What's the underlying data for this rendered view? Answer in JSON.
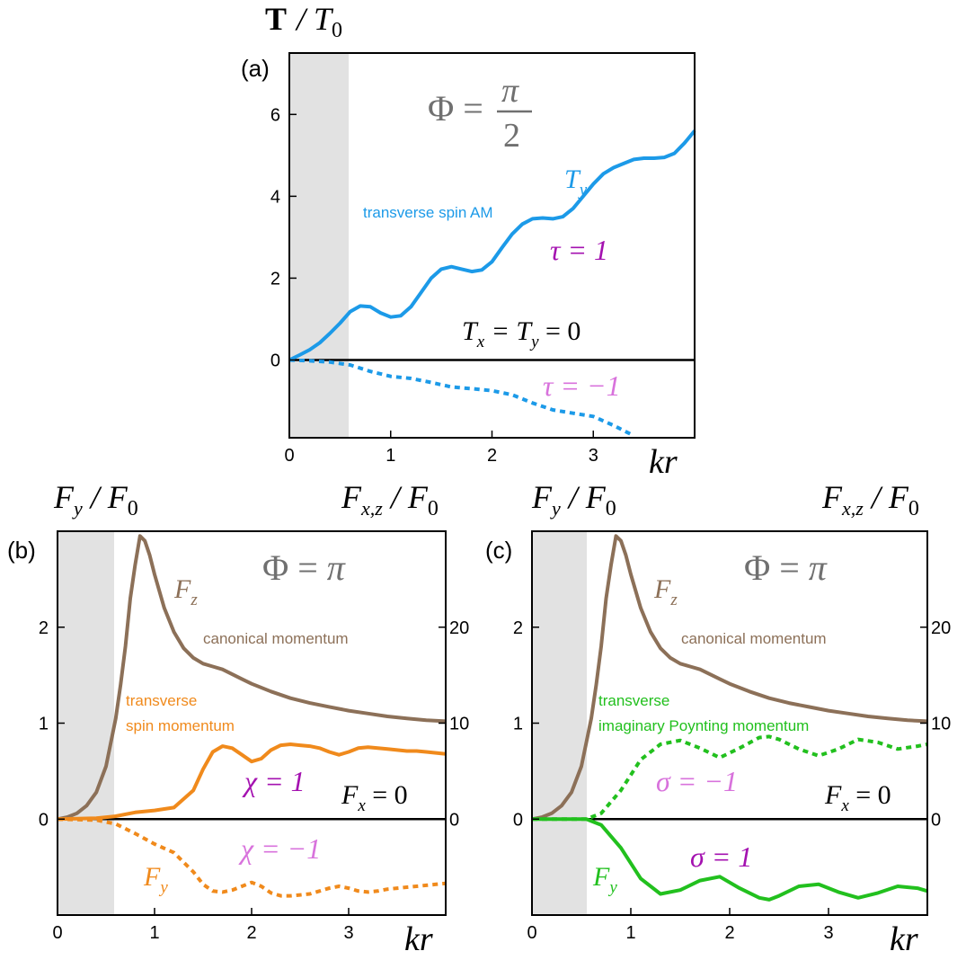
{
  "colors": {
    "blue": "#1c9ae8",
    "brown": "#8c7058",
    "orange": "#f08a1c",
    "green": "#22c01e",
    "purple": "#a412b0",
    "pink": "#d872dc",
    "gray_text": "#707070",
    "shade": "#e2e2e2"
  },
  "chart_data": [
    {
      "panel": "(a)",
      "type": "line",
      "ylabel": "T / T0",
      "xlabel": "kr",
      "xlim": [
        0,
        4
      ],
      "ylim": [
        -1.9,
        7.5
      ],
      "x_ticks": [
        "0",
        "1",
        "2",
        "3"
      ],
      "y_ticks": [
        "0",
        "2",
        "4",
        "6"
      ],
      "shaded_region": [
        0,
        0.6
      ],
      "phi_label": "Φ = π/2",
      "annotations": {
        "series_label": "Ty",
        "description": "transverse spin AM",
        "tau_pos": "τ = 1",
        "tau_neg": "τ = −1",
        "zero_note": "Tx = Ty = 0"
      },
      "series": [
        {
          "style": "solid",
          "color": "blue",
          "x": [
            0,
            0.1,
            0.2,
            0.3,
            0.4,
            0.5,
            0.6,
            0.7,
            0.8,
            0.9,
            1.0,
            1.1,
            1.2,
            1.3,
            1.4,
            1.5,
            1.6,
            1.7,
            1.8,
            1.9,
            2.0,
            2.1,
            2.2,
            2.3,
            2.4,
            2.5,
            2.6,
            2.7,
            2.8,
            2.9,
            3.0,
            3.1,
            3.2,
            3.3,
            3.4,
            3.5,
            3.6,
            3.7,
            3.8,
            3.9,
            4.0
          ],
          "y": [
            0,
            0.12,
            0.25,
            0.42,
            0.65,
            0.9,
            1.18,
            1.32,
            1.3,
            1.15,
            1.05,
            1.08,
            1.3,
            1.65,
            2.0,
            2.22,
            2.28,
            2.22,
            2.16,
            2.2,
            2.4,
            2.75,
            3.08,
            3.32,
            3.45,
            3.47,
            3.45,
            3.5,
            3.7,
            4.0,
            4.3,
            4.55,
            4.7,
            4.8,
            4.9,
            4.93,
            4.93,
            4.95,
            5.05,
            5.3,
            5.6
          ]
        },
        {
          "style": "dotted",
          "color": "blue",
          "x": [
            0,
            0.2,
            0.4,
            0.6,
            0.8,
            1.0,
            1.2,
            1.4,
            1.6,
            1.8,
            2.0,
            2.2,
            2.4,
            2.6,
            2.8,
            3.0,
            3.2,
            3.4
          ],
          "y": [
            0,
            -0.02,
            -0.05,
            -0.12,
            -0.28,
            -0.4,
            -0.45,
            -0.55,
            -0.66,
            -0.7,
            -0.75,
            -0.85,
            -1.05,
            -1.22,
            -1.3,
            -1.38,
            -1.6,
            -1.85
          ]
        }
      ]
    },
    {
      "panel": "(b)",
      "type": "line",
      "ylabel_left": "Fy / F0",
      "ylabel_right": "Fx,z / F0",
      "xlabel": "kr",
      "xlim": [
        0,
        4
      ],
      "ylim_left": [
        -1,
        3
      ],
      "ylim_right": [
        -10,
        30
      ],
      "x_ticks": [
        "0",
        "1",
        "2",
        "3"
      ],
      "y_ticks_left": [
        "0",
        "1",
        "2"
      ],
      "y_ticks_right": [
        "0",
        "10",
        "20"
      ],
      "shaded_region": [
        0,
        0.6
      ],
      "phi_label": "Φ = π",
      "annotations": {
        "fz_label": "Fz",
        "fz_description": "canonical momentum",
        "fy_label": "Fy",
        "fy_description_line1": "transverse",
        "fy_description_line2": "spin momentum",
        "chi_pos": "χ = 1",
        "chi_neg": "χ = −1",
        "zero_note": "Fx = 0"
      },
      "series": [
        {
          "name": "Fz",
          "style": "solid",
          "color": "brown",
          "axis": "right",
          "x": [
            0,
            0.1,
            0.2,
            0.3,
            0.4,
            0.5,
            0.6,
            0.65,
            0.7,
            0.75,
            0.8,
            0.85,
            0.9,
            0.95,
            1.0,
            1.1,
            1.2,
            1.3,
            1.4,
            1.5,
            1.6,
            1.7,
            1.8,
            1.9,
            2.0,
            2.2,
            2.4,
            2.6,
            2.8,
            3.0,
            3.2,
            3.4,
            3.6,
            3.8,
            4.0
          ],
          "y": [
            0,
            0.2,
            0.6,
            1.4,
            2.8,
            5.5,
            10.5,
            14,
            18,
            23,
            26.5,
            29.5,
            29,
            27.5,
            25.5,
            22,
            19.5,
            17.8,
            16.8,
            16.2,
            15.9,
            15.6,
            15.1,
            14.6,
            14.1,
            13.3,
            12.6,
            12.1,
            11.7,
            11.3,
            11.0,
            10.7,
            10.5,
            10.3,
            10.2
          ]
        },
        {
          "name": "Fy",
          "style": "solid",
          "color": "orange",
          "axis": "left",
          "x": [
            0,
            0.4,
            0.6,
            0.8,
            1.0,
            1.2,
            1.4,
            1.5,
            1.6,
            1.7,
            1.8,
            1.9,
            2.0,
            2.1,
            2.2,
            2.3,
            2.4,
            2.5,
            2.6,
            2.7,
            2.8,
            2.9,
            3.0,
            3.1,
            3.2,
            3.3,
            3.4,
            3.5,
            3.6,
            3.7,
            3.8,
            3.9,
            4.0
          ],
          "y": [
            0,
            0.01,
            0.03,
            0.07,
            0.09,
            0.12,
            0.3,
            0.52,
            0.7,
            0.76,
            0.74,
            0.67,
            0.6,
            0.63,
            0.72,
            0.77,
            0.78,
            0.77,
            0.76,
            0.74,
            0.7,
            0.67,
            0.7,
            0.74,
            0.75,
            0.74,
            0.73,
            0.72,
            0.71,
            0.71,
            0.7,
            0.69,
            0.68
          ]
        },
        {
          "name": "Fy",
          "style": "dotted",
          "color": "orange",
          "axis": "left",
          "x": [
            0,
            0.4,
            0.6,
            0.8,
            1.0,
            1.2,
            1.4,
            1.5,
            1.6,
            1.7,
            1.8,
            1.9,
            2.0,
            2.1,
            2.2,
            2.3,
            2.4,
            2.5,
            2.6,
            2.7,
            2.8,
            2.9,
            3.0,
            3.1,
            3.2,
            3.3,
            3.4,
            3.5,
            3.6,
            3.7,
            3.8,
            3.9,
            4.0
          ],
          "y": [
            0,
            -0.01,
            -0.05,
            -0.15,
            -0.26,
            -0.35,
            -0.55,
            -0.68,
            -0.75,
            -0.76,
            -0.74,
            -0.7,
            -0.66,
            -0.7,
            -0.77,
            -0.8,
            -0.8,
            -0.79,
            -0.78,
            -0.75,
            -0.72,
            -0.7,
            -0.72,
            -0.75,
            -0.76,
            -0.75,
            -0.73,
            -0.72,
            -0.71,
            -0.7,
            -0.69,
            -0.68,
            -0.67
          ]
        }
      ]
    },
    {
      "panel": "(c)",
      "type": "line",
      "ylabel_left": "Fy / F0",
      "ylabel_right": "Fx,z / F0",
      "xlabel": "kr",
      "xlim": [
        0,
        4
      ],
      "ylim_left": [
        -1,
        3
      ],
      "ylim_right": [
        -10,
        30
      ],
      "x_ticks": [
        "0",
        "1",
        "2",
        "3"
      ],
      "y_ticks_left": [
        "0",
        "1",
        "2"
      ],
      "y_ticks_right": [
        "0",
        "10",
        "20"
      ],
      "shaded_region": [
        0,
        0.55
      ],
      "phi_label": "Φ = π",
      "annotations": {
        "fz_label": "Fz",
        "fz_description": "canonical momentum",
        "fy_label": "Fy",
        "fy_description_line1": "transverse",
        "fy_description_line2": "imaginary Poynting momentum",
        "sigma_neg": "σ = −1",
        "sigma_pos": "σ = 1",
        "zero_note": "Fx = 0"
      },
      "series": [
        {
          "name": "Fz",
          "style": "solid",
          "color": "brown",
          "axis": "right",
          "x": [
            0,
            0.1,
            0.2,
            0.3,
            0.4,
            0.5,
            0.6,
            0.65,
            0.7,
            0.75,
            0.8,
            0.85,
            0.9,
            0.95,
            1.0,
            1.1,
            1.2,
            1.3,
            1.4,
            1.5,
            1.6,
            1.7,
            1.8,
            1.9,
            2.0,
            2.2,
            2.4,
            2.6,
            2.8,
            3.0,
            3.2,
            3.4,
            3.6,
            3.8,
            4.0
          ],
          "y": [
            0,
            0.2,
            0.6,
            1.4,
            2.8,
            5.5,
            10.5,
            14,
            18,
            23,
            26.5,
            29.5,
            29,
            27.5,
            25.5,
            22,
            19.5,
            17.8,
            16.8,
            16.2,
            15.9,
            15.6,
            15.1,
            14.6,
            14.1,
            13.3,
            12.6,
            12.1,
            11.7,
            11.3,
            11.0,
            10.7,
            10.5,
            10.3,
            10.2
          ]
        },
        {
          "name": "Fy",
          "style": "dotted",
          "color": "green",
          "axis": "left",
          "x": [
            0,
            0.4,
            0.55,
            0.7,
            0.9,
            1.1,
            1.3,
            1.5,
            1.7,
            1.9,
            2.1,
            2.3,
            2.4,
            2.5,
            2.7,
            2.9,
            3.1,
            3.3,
            3.5,
            3.7,
            3.9,
            4.0
          ],
          "y": [
            0,
            0.0,
            0.0,
            0.06,
            0.3,
            0.62,
            0.78,
            0.82,
            0.74,
            0.64,
            0.74,
            0.85,
            0.86,
            0.83,
            0.73,
            0.66,
            0.73,
            0.83,
            0.8,
            0.73,
            0.76,
            0.78
          ]
        },
        {
          "name": "Fy",
          "style": "solid",
          "color": "green",
          "axis": "left",
          "x": [
            0,
            0.4,
            0.55,
            0.7,
            0.9,
            1.1,
            1.3,
            1.5,
            1.7,
            1.9,
            2.1,
            2.3,
            2.4,
            2.5,
            2.7,
            2.9,
            3.1,
            3.3,
            3.5,
            3.7,
            3.9,
            4.0
          ],
          "y": [
            0,
            0.0,
            0.0,
            -0.06,
            -0.3,
            -0.62,
            -0.78,
            -0.74,
            -0.64,
            -0.6,
            -0.72,
            -0.82,
            -0.84,
            -0.8,
            -0.7,
            -0.68,
            -0.76,
            -0.82,
            -0.77,
            -0.7,
            -0.72,
            -0.75
          ]
        }
      ]
    }
  ]
}
